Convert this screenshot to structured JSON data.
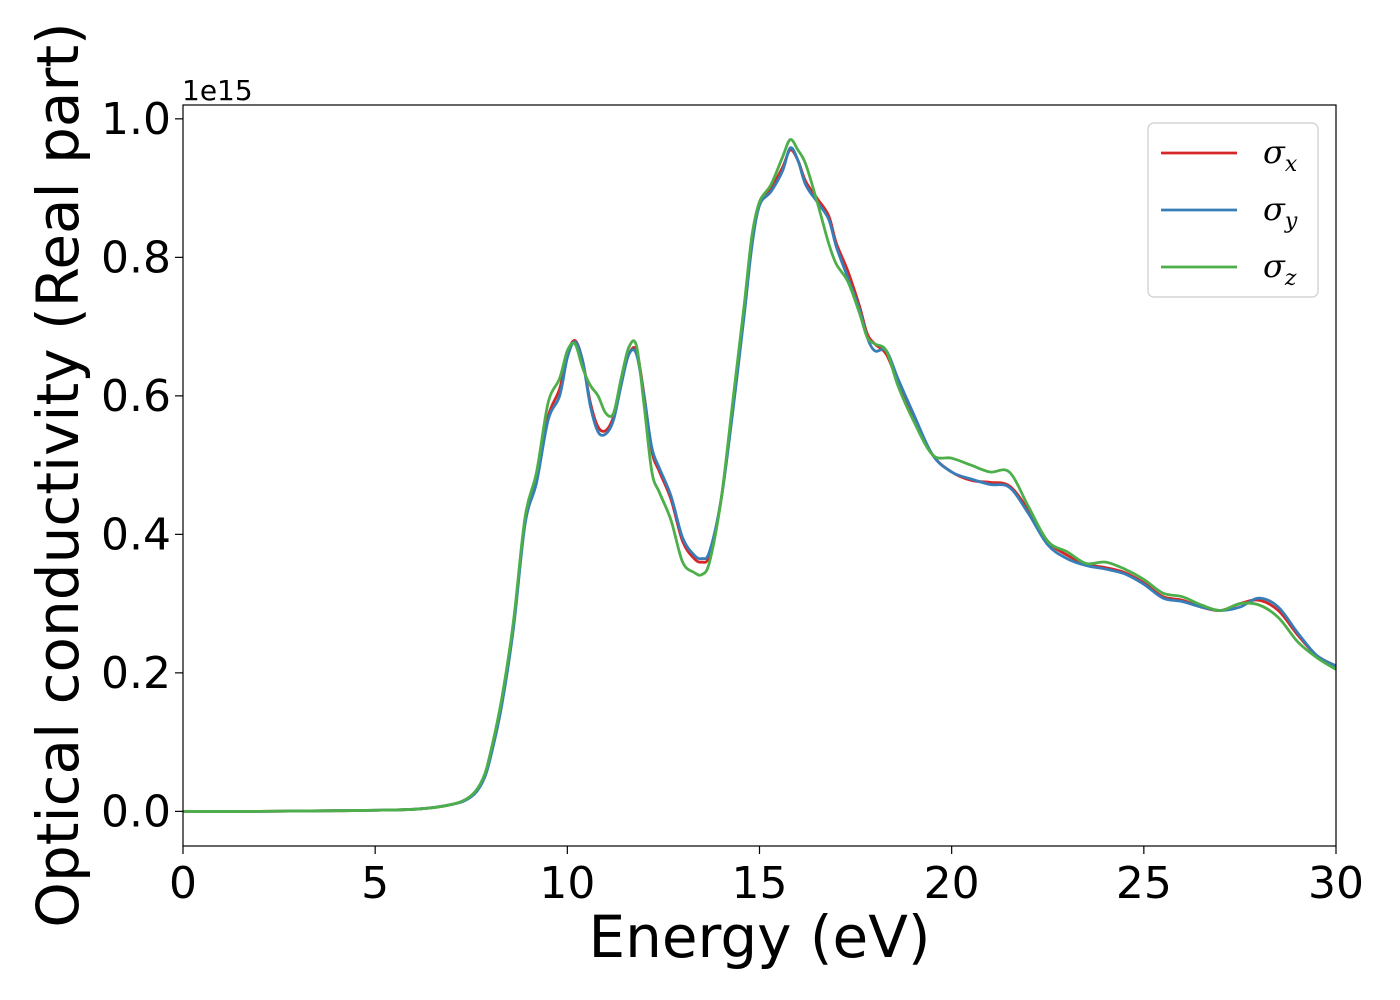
{
  "chart_data": {
    "type": "line",
    "xlabel": "Energy (eV)",
    "ylabel": "Optical conductivity (Real part)",
    "y_offset_label": "1e15",
    "xlim": [
      0,
      30
    ],
    "ylim": [
      -0.05,
      1.02
    ],
    "xticks": [
      0,
      5,
      10,
      15,
      20,
      25,
      30
    ],
    "xtick_labels": [
      "0",
      "5",
      "10",
      "15",
      "20",
      "25",
      "30"
    ],
    "yticks": [
      0.0,
      0.2,
      0.4,
      0.6,
      0.8,
      1.0
    ],
    "ytick_labels": [
      "0.0",
      "0.2",
      "0.4",
      "0.6",
      "0.8",
      "1.0"
    ],
    "grid": false,
    "legend_position": "top-right",
    "series": [
      {
        "name": "σx",
        "symbol": "σ",
        "subscript": "x",
        "color": "#d62728",
        "x": [
          0,
          2,
          4,
          6,
          7,
          7.5,
          7.8,
          8.0,
          8.3,
          8.6,
          8.9,
          9.2,
          9.5,
          9.8,
          10.0,
          10.2,
          10.4,
          10.6,
          10.8,
          11.0,
          11.2,
          11.4,
          11.6,
          11.8,
          12.0,
          12.2,
          12.4,
          12.7,
          13.0,
          13.3,
          13.5,
          13.7,
          14.0,
          14.3,
          14.6,
          14.8,
          15.0,
          15.3,
          15.6,
          15.8,
          16.0,
          16.2,
          16.5,
          16.8,
          17.0,
          17.3,
          17.6,
          17.8,
          18.0,
          18.3,
          18.6,
          19.0,
          19.5,
          20.0,
          20.5,
          21.0,
          21.5,
          22.0,
          22.5,
          23.0,
          23.5,
          24.0,
          24.5,
          25.0,
          25.5,
          26.0,
          26.5,
          27.0,
          27.5,
          28.0,
          28.5,
          29.0,
          29.5,
          30.0
        ],
        "y": [
          0.0,
          0.0,
          0.001,
          0.003,
          0.01,
          0.022,
          0.045,
          0.08,
          0.16,
          0.27,
          0.42,
          0.48,
          0.57,
          0.61,
          0.66,
          0.68,
          0.65,
          0.59,
          0.555,
          0.55,
          0.57,
          0.62,
          0.66,
          0.665,
          0.6,
          0.52,
          0.49,
          0.45,
          0.39,
          0.365,
          0.36,
          0.37,
          0.45,
          0.58,
          0.72,
          0.82,
          0.88,
          0.9,
          0.93,
          0.955,
          0.94,
          0.91,
          0.885,
          0.86,
          0.82,
          0.78,
          0.73,
          0.69,
          0.675,
          0.66,
          0.62,
          0.57,
          0.515,
          0.49,
          0.478,
          0.475,
          0.47,
          0.435,
          0.39,
          0.37,
          0.357,
          0.352,
          0.345,
          0.33,
          0.31,
          0.305,
          0.295,
          0.29,
          0.3,
          0.305,
          0.29,
          0.255,
          0.225,
          0.21
        ]
      },
      {
        "name": "σy",
        "symbol": "σ",
        "subscript": "y",
        "color": "#377eb8",
        "x": [
          0,
          2,
          4,
          6,
          7,
          7.5,
          7.8,
          8.0,
          8.3,
          8.6,
          8.9,
          9.2,
          9.5,
          9.8,
          10.0,
          10.2,
          10.4,
          10.6,
          10.8,
          11.0,
          11.2,
          11.4,
          11.6,
          11.8,
          12.0,
          12.2,
          12.4,
          12.7,
          13.0,
          13.3,
          13.5,
          13.7,
          14.0,
          14.3,
          14.6,
          14.8,
          15.0,
          15.3,
          15.6,
          15.8,
          16.0,
          16.2,
          16.5,
          16.8,
          17.0,
          17.3,
          17.6,
          17.8,
          18.0,
          18.3,
          18.6,
          19.0,
          19.5,
          20.0,
          20.5,
          21.0,
          21.5,
          22.0,
          22.5,
          23.0,
          23.5,
          24.0,
          24.5,
          25.0,
          25.5,
          26.0,
          26.5,
          27.0,
          27.5,
          28.0,
          28.5,
          29.0,
          29.5,
          30.0
        ],
        "y": [
          0.0,
          0.0,
          0.001,
          0.003,
          0.01,
          0.021,
          0.043,
          0.078,
          0.155,
          0.265,
          0.415,
          0.475,
          0.565,
          0.6,
          0.655,
          0.678,
          0.65,
          0.585,
          0.548,
          0.545,
          0.565,
          0.615,
          0.66,
          0.66,
          0.598,
          0.525,
          0.495,
          0.455,
          0.395,
          0.37,
          0.365,
          0.375,
          0.45,
          0.575,
          0.715,
          0.815,
          0.875,
          0.895,
          0.925,
          0.958,
          0.94,
          0.905,
          0.88,
          0.855,
          0.815,
          0.77,
          0.725,
          0.685,
          0.665,
          0.665,
          0.625,
          0.575,
          0.515,
          0.49,
          0.48,
          0.472,
          0.468,
          0.43,
          0.385,
          0.365,
          0.355,
          0.35,
          0.343,
          0.328,
          0.308,
          0.303,
          0.295,
          0.29,
          0.295,
          0.308,
          0.295,
          0.258,
          0.225,
          0.21
        ]
      },
      {
        "name": "σz",
        "symbol": "σ",
        "subscript": "z",
        "color": "#4daf4a",
        "x": [
          0,
          2,
          4,
          6,
          7,
          7.5,
          7.8,
          8.0,
          8.3,
          8.6,
          8.9,
          9.2,
          9.5,
          9.8,
          10.0,
          10.2,
          10.4,
          10.6,
          10.8,
          11.0,
          11.2,
          11.4,
          11.6,
          11.8,
          12.0,
          12.2,
          12.4,
          12.7,
          13.0,
          13.3,
          13.5,
          13.7,
          14.0,
          14.3,
          14.6,
          14.8,
          15.0,
          15.3,
          15.6,
          15.8,
          16.0,
          16.2,
          16.5,
          16.8,
          17.0,
          17.3,
          17.6,
          17.8,
          18.0,
          18.3,
          18.6,
          19.0,
          19.5,
          20.0,
          20.5,
          21.0,
          21.5,
          22.0,
          22.5,
          23.0,
          23.5,
          24.0,
          24.5,
          25.0,
          25.5,
          26.0,
          26.5,
          27.0,
          27.5,
          28.0,
          28.5,
          29.0,
          29.5,
          30.0
        ],
        "y": [
          0.0,
          0.0,
          0.001,
          0.003,
          0.01,
          0.023,
          0.047,
          0.085,
          0.165,
          0.275,
          0.425,
          0.49,
          0.59,
          0.625,
          0.665,
          0.675,
          0.64,
          0.615,
          0.6,
          0.575,
          0.575,
          0.625,
          0.67,
          0.672,
          0.585,
          0.49,
          0.46,
          0.42,
          0.36,
          0.345,
          0.342,
          0.36,
          0.45,
          0.59,
          0.73,
          0.83,
          0.88,
          0.905,
          0.945,
          0.97,
          0.955,
          0.935,
          0.88,
          0.82,
          0.79,
          0.765,
          0.72,
          0.685,
          0.675,
          0.665,
          0.615,
          0.565,
          0.515,
          0.51,
          0.5,
          0.49,
          0.49,
          0.44,
          0.39,
          0.375,
          0.358,
          0.36,
          0.35,
          0.335,
          0.315,
          0.31,
          0.298,
          0.29,
          0.3,
          0.298,
          0.28,
          0.245,
          0.222,
          0.205
        ]
      }
    ]
  }
}
